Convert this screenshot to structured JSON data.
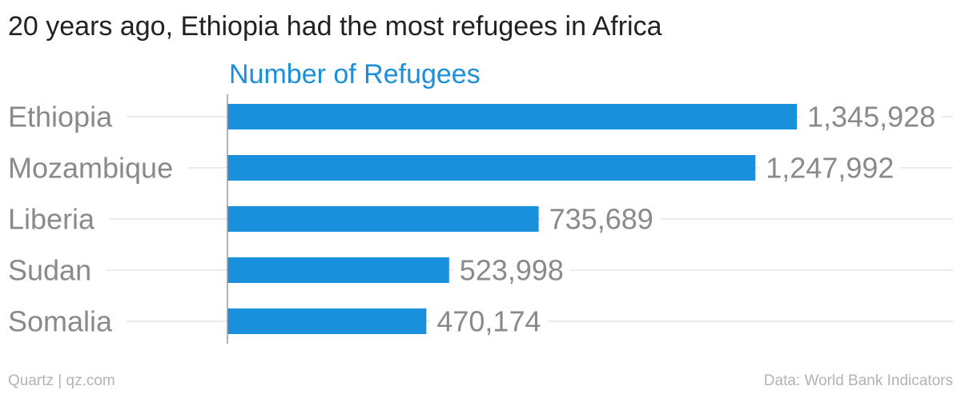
{
  "title": "20 years ago, Ethiopia had the most refugees in Africa",
  "footer": {
    "credit": "Quartz | qz.com",
    "source": "Data: World Bank Indicators"
  },
  "colors": {
    "bar": "#1a8fdb",
    "series_label": "#1a8fdb",
    "category_text": "#8a8a8a",
    "value_text": "#8a8a8a",
    "gridline": "#e6e6e6",
    "axis": "#999999"
  },
  "chart_data": {
    "type": "bar",
    "orientation": "horizontal",
    "categories": [
      "Ethiopia",
      "Mozambique",
      "Liberia",
      "Sudan",
      "Somalia"
    ],
    "series": [
      {
        "name": "Number of Refugees",
        "values": [
          1345928,
          1247992,
          735689,
          523998,
          470174
        ]
      }
    ],
    "value_labels": [
      "1,345,928",
      "1,247,992",
      "735,689",
      "523,998",
      "470,174"
    ],
    "xlim": [
      0,
      1345928
    ],
    "grid": true,
    "legend": "top-left"
  }
}
